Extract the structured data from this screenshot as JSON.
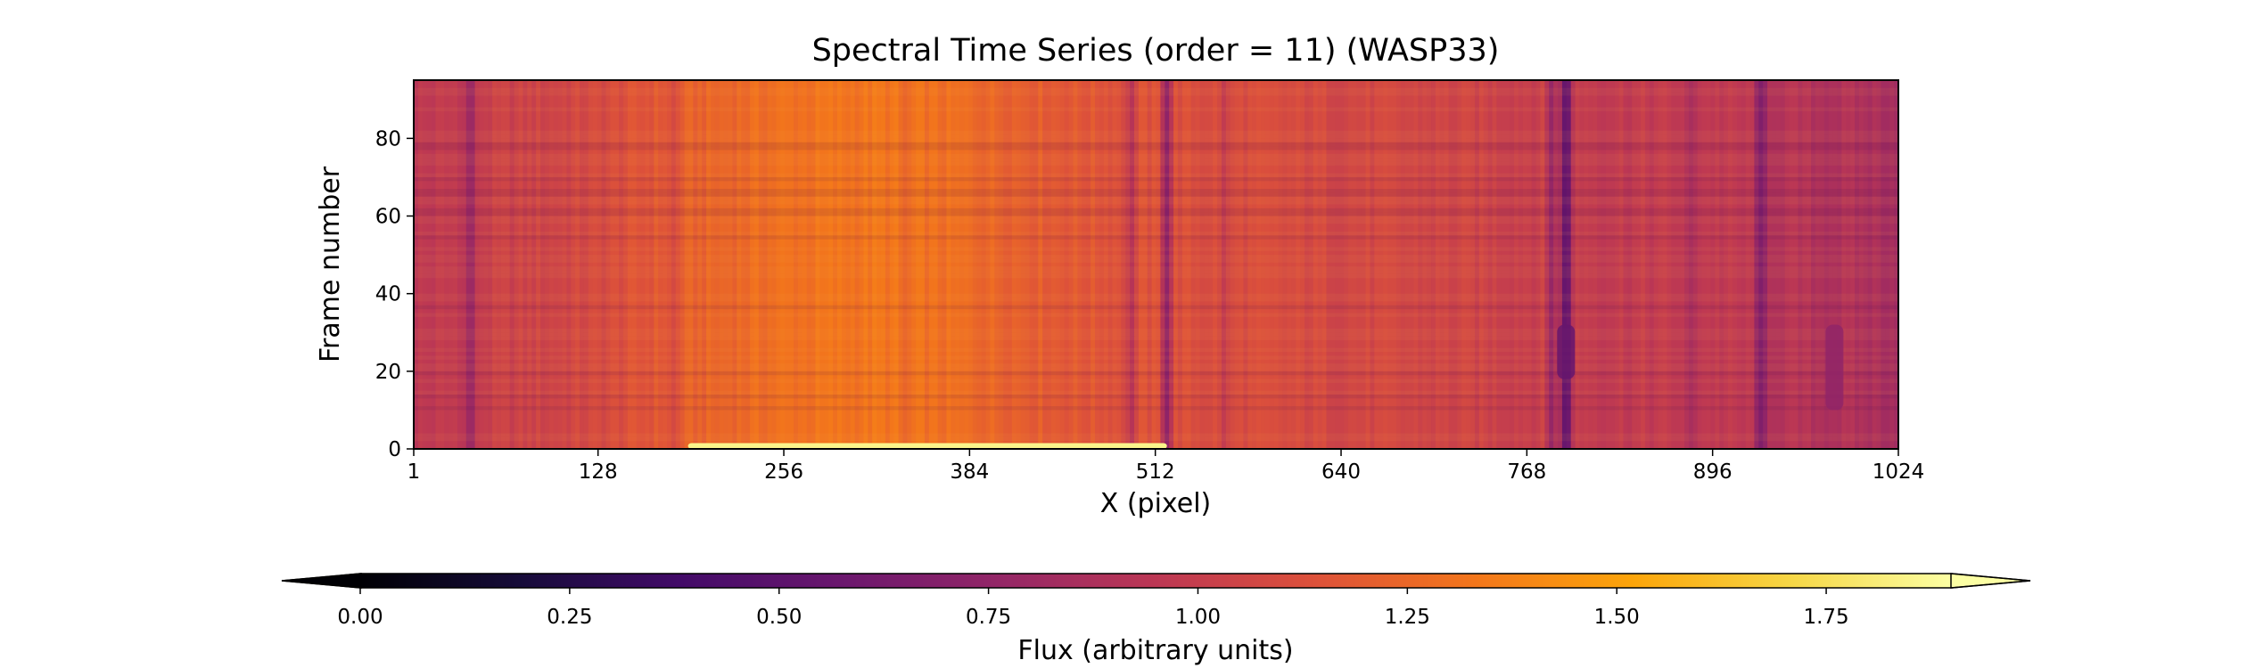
{
  "chart_data": {
    "type": "heatmap",
    "title": "Spectral Time Series (order = 11) (WASP33)",
    "xlabel": "X (pixel)",
    "ylabel": "Frame number",
    "xlim": [
      1,
      1024
    ],
    "ylim": [
      0,
      95
    ],
    "x_ticks": [
      1,
      128,
      256,
      384,
      512,
      640,
      768,
      896,
      1024
    ],
    "y_ticks": [
      0,
      20,
      40,
      60,
      80
    ],
    "colormap": "inferno",
    "colorbar": {
      "label": "Flux (arbitrary units)",
      "vmin": 0.0,
      "vmax": 1.9,
      "ticks": [
        "0.00",
        "0.25",
        "0.50",
        "0.75",
        "1.00",
        "1.25",
        "1.50",
        "1.75"
      ],
      "orientation": "horizontal",
      "extend": "both",
      "position": "bottom"
    },
    "continuum_profile": {
      "x": [
        1,
        64,
        128,
        192,
        256,
        320,
        384,
        448,
        512,
        576,
        640,
        704,
        768,
        832,
        896,
        960,
        1024
      ],
      "flux": [
        0.95,
        1.02,
        1.08,
        1.22,
        1.3,
        1.32,
        1.27,
        1.18,
        1.12,
        1.1,
        1.07,
        1.05,
        1.02,
        0.98,
        0.97,
        0.9,
        0.86
      ]
    },
    "absorption_lines": [
      {
        "x": 40,
        "depth": 0.25
      },
      {
        "x": 180,
        "depth": 0.12
      },
      {
        "x": 340,
        "depth": 0.08
      },
      {
        "x": 495,
        "depth": 0.22
      },
      {
        "x": 520,
        "depth": 0.35
      },
      {
        "x": 560,
        "depth": 0.12
      },
      {
        "x": 785,
        "depth": 0.22
      },
      {
        "x": 795,
        "depth": 0.55
      },
      {
        "x": 880,
        "depth": 0.15
      },
      {
        "x": 930,
        "depth": 0.35
      }
    ],
    "transient_features": [
      {
        "x": 795,
        "frames": [
          18,
          32
        ],
        "flux": 0.55
      },
      {
        "x": 980,
        "frames": [
          10,
          32
        ],
        "flux": 0.75
      }
    ],
    "bright_feature": {
      "frames": [
        0,
        1.5
      ],
      "x_range": [
        190,
        520
      ],
      "flux": 1.85
    }
  }
}
